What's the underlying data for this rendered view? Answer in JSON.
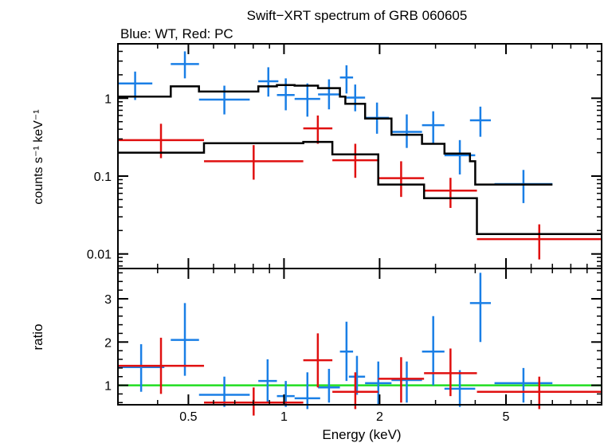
{
  "chart_data": {
    "type": "scatter",
    "title": "Swift−XRT spectrum of GRB 060605",
    "subtitle": "Blue: WT, Red: PC",
    "xlabel": "Energy (keV)",
    "x_scale": "log",
    "xlim": [
      0.3,
      10
    ],
    "x_ticks": [
      "0.5",
      "1",
      "2",
      "5"
    ],
    "x_tick_values": [
      0.5,
      1,
      2,
      5
    ],
    "colors": {
      "wt": "#1a7fe6",
      "pc": "#e01010",
      "model": "#000000",
      "unity": "#22dd22"
    },
    "panels": [
      {
        "name": "spectrum",
        "ylabel": "counts s⁻¹ keV⁻¹",
        "y_scale": "log",
        "ylim": [
          0.0065,
          5
        ],
        "y_ticks": [
          "0.01",
          "0.1",
          "1"
        ],
        "y_tick_values": [
          0.01,
          0.1,
          1
        ],
        "series": [
          {
            "id": "wt",
            "color": "#1a7fe6",
            "points": [
              [
                0.3,
                0.385,
                1.55,
                2.2,
                0.95
              ],
              [
                0.44,
                0.54,
                2.75,
                4.0,
                1.8
              ],
              [
                0.54,
                0.78,
                0.96,
                1.45,
                0.62
              ],
              [
                0.83,
                0.96,
                1.65,
                2.5,
                1.05
              ],
              [
                0.95,
                1.08,
                1.1,
                1.8,
                0.7
              ],
              [
                1.08,
                1.3,
                0.98,
                1.55,
                0.58
              ],
              [
                1.28,
                1.5,
                1.12,
                1.75,
                0.72
              ],
              [
                1.5,
                1.65,
                1.85,
                2.65,
                1.15
              ],
              [
                1.56,
                1.8,
                1.02,
                1.5,
                0.68
              ],
              [
                1.8,
                2.14,
                0.56,
                0.88,
                0.35
              ],
              [
                2.18,
                2.72,
                0.37,
                0.62,
                0.23
              ],
              [
                2.72,
                3.2,
                0.45,
                0.68,
                0.26
              ],
              [
                3.2,
                4.0,
                0.185,
                0.29,
                0.105
              ],
              [
                3.85,
                4.48,
                0.52,
                0.78,
                0.32
              ],
              [
                4.6,
                7.0,
                0.079,
                0.12,
                0.045
              ]
            ]
          },
          {
            "id": "pc",
            "color": "#e01010",
            "points": [
              [
                0.3,
                0.56,
                0.29,
                0.47,
                0.17
              ],
              [
                0.56,
                1.15,
                0.155,
                0.25,
                0.09
              ],
              [
                1.15,
                1.42,
                0.41,
                0.6,
                0.26
              ],
              [
                1.42,
                1.98,
                0.16,
                0.26,
                0.095
              ],
              [
                1.98,
                2.76,
                0.094,
                0.155,
                0.054
              ],
              [
                2.76,
                4.05,
                0.065,
                0.095,
                0.039
              ],
              [
                4.05,
                10.0,
                0.0155,
                0.024,
                0.0085
              ]
            ]
          },
          {
            "id": "model-wt",
            "color": "#000000",
            "steps": [
              [
                0.3,
                1.05
              ],
              [
                0.44,
                1.42
              ],
              [
                0.54,
                1.22
              ],
              [
                0.83,
                1.42
              ],
              [
                0.95,
                1.48
              ],
              [
                1.08,
                1.45
              ],
              [
                1.28,
                1.35
              ],
              [
                1.5,
                1.05
              ],
              [
                1.56,
                0.85
              ],
              [
                1.8,
                0.55
              ],
              [
                2.18,
                0.34
              ],
              [
                2.72,
                0.26
              ],
              [
                3.2,
                0.195
              ],
              [
                3.85,
                0.155
              ],
              [
                4.0,
                0.078
              ],
              [
                7.0,
                0.078
              ]
            ]
          },
          {
            "id": "model-pc",
            "color": "#000000",
            "steps": [
              [
                0.3,
                0.2
              ],
              [
                0.56,
                0.265
              ],
              [
                1.15,
                0.275
              ],
              [
                1.42,
                0.19
              ],
              [
                1.98,
                0.078
              ],
              [
                2.76,
                0.052
              ],
              [
                4.05,
                0.018
              ],
              [
                10.0,
                0.018
              ]
            ]
          }
        ]
      },
      {
        "name": "ratio",
        "ylabel": "ratio",
        "y_scale": "linear",
        "ylim": [
          0.55,
          3.7
        ],
        "y_ticks": [
          "1",
          "2",
          "3"
        ],
        "y_tick_values": [
          1,
          2,
          3
        ],
        "reference_y": 1,
        "series": [
          {
            "id": "wt",
            "color": "#1a7fe6",
            "points": [
              [
                0.3,
                0.42,
                1.42,
                1.95,
                0.85
              ],
              [
                0.44,
                0.54,
                2.05,
                2.9,
                1.22
              ],
              [
                0.54,
                0.78,
                0.78,
                1.2,
                0.5
              ],
              [
                0.83,
                0.95,
                1.1,
                1.6,
                0.62
              ],
              [
                0.95,
                1.08,
                0.75,
                1.1,
                0.5
              ],
              [
                1.08,
                1.3,
                0.7,
                1.3,
                0.45
              ],
              [
                1.28,
                1.5,
                0.95,
                1.38,
                0.6
              ],
              [
                1.5,
                1.65,
                1.78,
                2.47,
                1.1
              ],
              [
                1.6,
                1.8,
                1.2,
                1.68,
                0.78
              ],
              [
                1.8,
                2.18,
                1.05,
                1.55,
                0.55
              ],
              [
                2.18,
                2.72,
                1.12,
                1.55,
                0.6
              ],
              [
                2.72,
                3.2,
                1.78,
                2.6,
                1.0
              ],
              [
                3.2,
                4.0,
                0.92,
                1.35,
                0.5
              ],
              [
                3.85,
                4.48,
                2.9,
                3.6,
                2.0
              ],
              [
                4.6,
                7.0,
                1.05,
                1.4,
                0.6
              ]
            ]
          },
          {
            "id": "pc",
            "color": "#e01010",
            "points": [
              [
                0.3,
                0.56,
                1.45,
                2.1,
                0.8
              ],
              [
                0.56,
                1.15,
                0.6,
                0.95,
                0.3
              ],
              [
                1.15,
                1.42,
                1.58,
                2.2,
                0.95
              ],
              [
                1.42,
                1.98,
                0.85,
                1.3,
                0.45
              ],
              [
                1.98,
                2.76,
                1.15,
                1.65,
                0.6
              ],
              [
                2.76,
                4.05,
                1.28,
                1.85,
                0.75
              ],
              [
                4.05,
                10.0,
                0.85,
                1.2,
                0.45
              ]
            ]
          }
        ]
      }
    ]
  }
}
